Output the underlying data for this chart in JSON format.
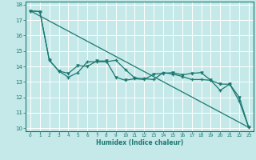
{
  "xlabel": "Humidex (Indice chaleur)",
  "xlim": [
    -0.5,
    23.5
  ],
  "ylim": [
    9.8,
    18.2
  ],
  "xticks": [
    0,
    1,
    2,
    3,
    4,
    5,
    6,
    7,
    8,
    9,
    10,
    11,
    12,
    13,
    14,
    15,
    16,
    17,
    18,
    19,
    20,
    21,
    22,
    23
  ],
  "yticks": [
    10,
    11,
    12,
    13,
    14,
    15,
    16,
    17,
    18
  ],
  "bg_color": "#c5e8e8",
  "line_color": "#1a7870",
  "grid_color": "#ffffff",
  "line1_x": [
    0,
    1,
    2,
    3,
    4,
    5,
    6,
    7,
    8,
    9,
    10,
    11,
    12,
    13,
    14,
    15,
    16,
    17,
    18,
    19,
    20,
    21,
    22,
    23
  ],
  "line1_y": [
    17.6,
    17.55,
    14.4,
    13.7,
    13.3,
    13.6,
    14.3,
    14.3,
    14.3,
    14.4,
    13.8,
    13.25,
    13.2,
    13.15,
    13.6,
    13.5,
    13.35,
    13.15,
    13.15,
    13.1,
    12.45,
    12.85,
    11.75,
    10.05
  ],
  "line2_x": [
    0,
    1,
    2,
    3,
    4,
    5,
    6,
    7,
    8,
    9,
    10,
    11,
    12,
    13,
    14,
    15,
    16,
    17,
    18,
    19,
    20,
    21,
    22,
    23
  ],
  "line2_y": [
    17.6,
    17.55,
    14.4,
    13.7,
    13.55,
    14.05,
    14.0,
    14.35,
    14.35,
    13.3,
    13.1,
    13.2,
    13.15,
    13.5,
    13.55,
    13.6,
    13.45,
    13.55,
    13.6,
    13.1,
    12.85,
    12.85,
    12.0,
    10.05
  ],
  "line3_x": [
    0,
    23
  ],
  "line3_y": [
    17.6,
    10.05
  ]
}
